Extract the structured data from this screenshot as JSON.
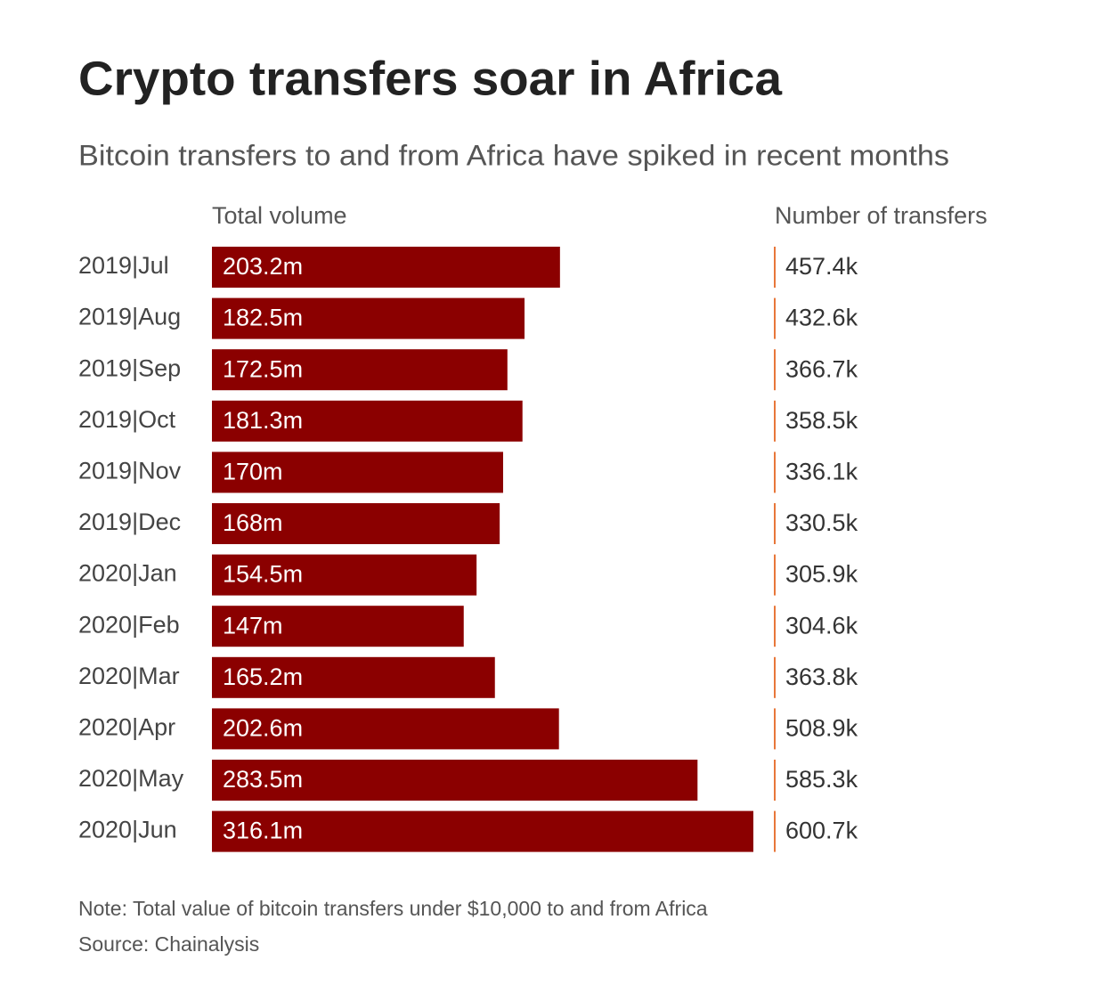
{
  "chart_data": {
    "type": "bar",
    "title": "Crypto transfers soar in Africa",
    "subtitle": "Bitcoin transfers to and from Africa have spiked in recent months",
    "categories": [
      "2019|Jul",
      "2019|Aug",
      "2019|Sep",
      "2019|Oct",
      "2019|Nov",
      "2019|Dec",
      "2020|Jan",
      "2020|Feb",
      "2020|Mar",
      "2020|Apr",
      "2020|May",
      "2020|Jun"
    ],
    "series": [
      {
        "name": "Total volume",
        "color": "#8b0000",
        "values": [
          203.2,
          182.5,
          172.5,
          181.3,
          170,
          168,
          154.5,
          147,
          165.2,
          202.6,
          283.5,
          316.1
        ],
        "value_labels": [
          "203.2m",
          "182.5m",
          "172.5m",
          "181.3m",
          "170m",
          "168m",
          "154.5m",
          "147m",
          "165.2m",
          "202.6m",
          "283.5m",
          "316.1m"
        ]
      },
      {
        "name": "Number of transfers",
        "color": "#e8773a",
        "values": [
          457.4,
          432.6,
          366.7,
          358.5,
          336.1,
          330.5,
          305.9,
          304.6,
          363.8,
          508.9,
          585.3,
          600.7
        ],
        "value_labels": [
          "457.4k",
          "432.6k",
          "366.7k",
          "358.5k",
          "336.1k",
          "330.5k",
          "305.9k",
          "304.6k",
          "363.8k",
          "508.9k",
          "585.3k",
          "600.7k"
        ]
      }
    ],
    "xlim": [
      0,
      316.1
    ],
    "notes": [
      "Note: Total value of bitcoin transfers under $10,000 to and from Africa",
      "Source: Chainalysis"
    ]
  }
}
